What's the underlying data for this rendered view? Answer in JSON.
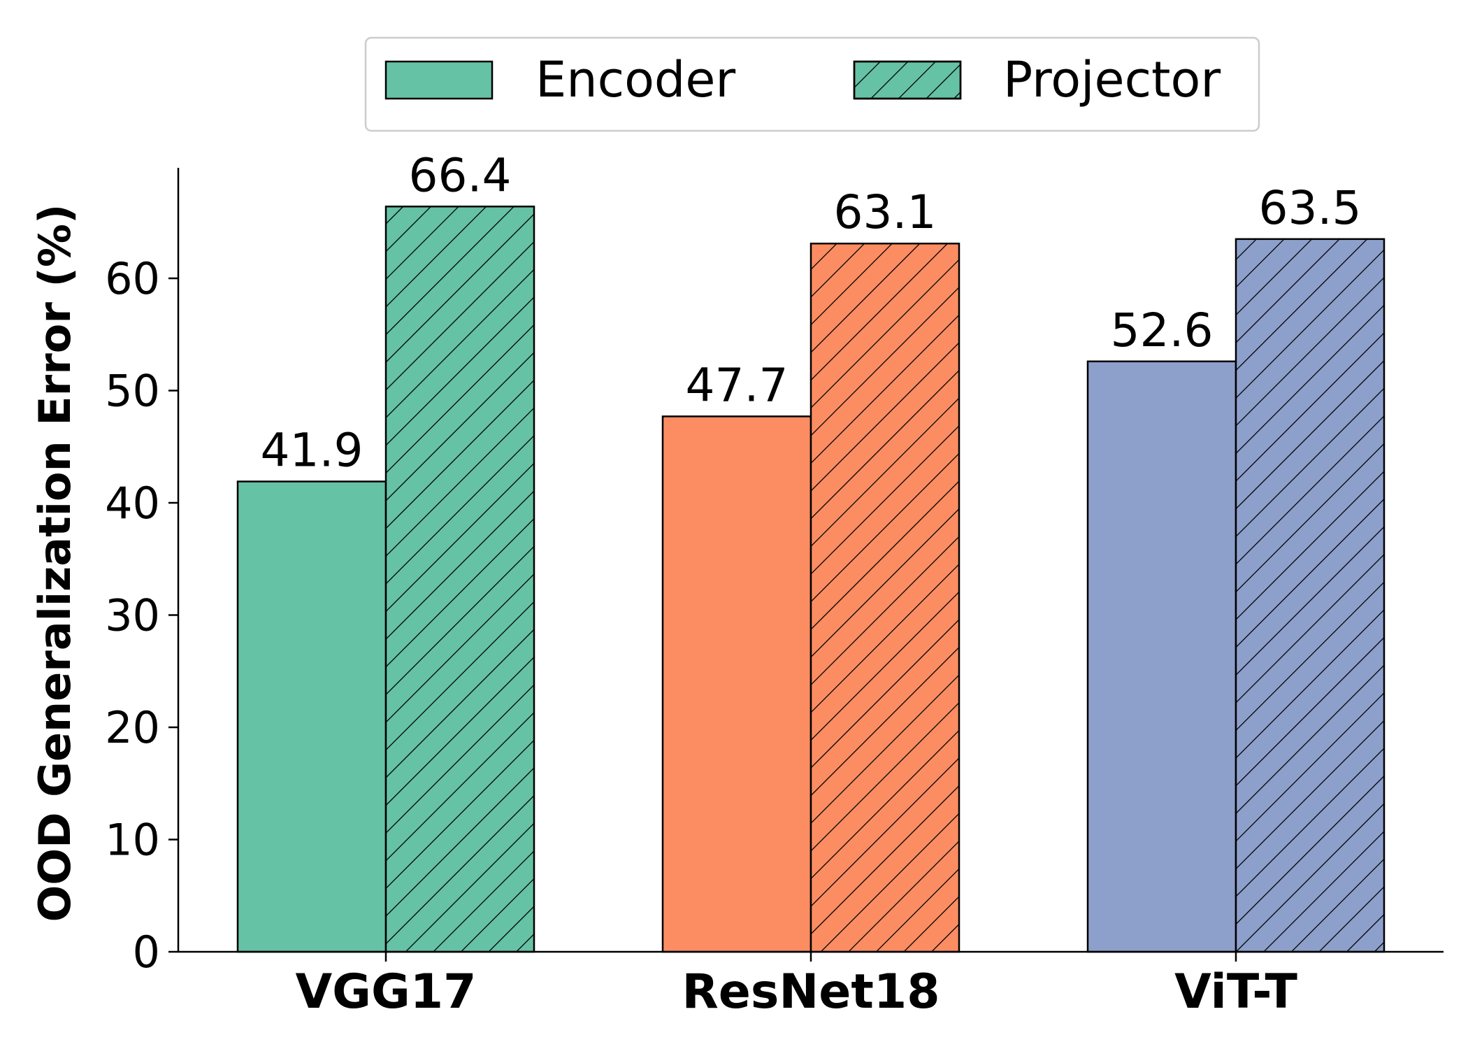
{
  "chart_data": {
    "type": "bar",
    "categories": [
      "VGG17",
      "ResNet18",
      "ViT-T"
    ],
    "category_colors": [
      "#66c2a5",
      "#fc8d62",
      "#8da0cb"
    ],
    "series": [
      {
        "name": "Encoder",
        "values": [
          41.9,
          47.7,
          52.6
        ],
        "hatch": "none",
        "value_labels": [
          "41.9",
          "47.7",
          "52.6"
        ]
      },
      {
        "name": "Projector",
        "values": [
          66.4,
          63.1,
          63.5
        ],
        "hatch": "diagonal",
        "value_labels": [
          "66.4",
          "63.1",
          "63.5"
        ]
      }
    ],
    "xlabel": "",
    "ylabel": "OOD Generalization Error (%)",
    "ylim": [
      0,
      70
    ],
    "yticks": [
      0,
      10,
      20,
      30,
      40,
      50,
      60
    ],
    "ytick_labels": [
      "0",
      "10",
      "20",
      "30",
      "40",
      "50",
      "60"
    ],
    "grid": false,
    "legend_position": "top-center",
    "legend_color": "#66c2a5"
  }
}
